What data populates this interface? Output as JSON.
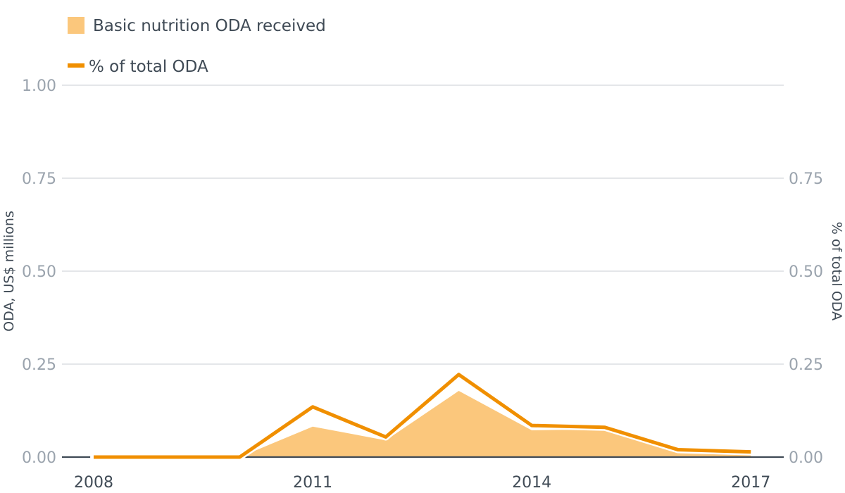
{
  "chart_data": {
    "type": "line",
    "categories": [
      "2008",
      "2009",
      "2010",
      "2011",
      "2012",
      "2013",
      "2014",
      "2015",
      "2016",
      "2017"
    ],
    "x_tick_labels": [
      "2008",
      "2011",
      "2014",
      "2017"
    ],
    "series": [
      {
        "name": "Basic nutrition ODA received",
        "type": "area",
        "axis": "left",
        "color": "#fbc77c",
        "values": [
          0.0,
          0.0,
          0.0,
          0.082,
          0.045,
          0.178,
          0.072,
          0.075,
          0.013,
          0.008
        ]
      },
      {
        "name": "% of total ODA",
        "type": "line",
        "axis": "right",
        "color": "#f08f00",
        "values": [
          0.0,
          0.0,
          0.0,
          0.135,
          0.054,
          0.222,
          0.085,
          0.08,
          0.02,
          0.014
        ]
      }
    ],
    "y_left": {
      "label": "ODA, US$ millions",
      "range": [
        0,
        1
      ],
      "ticks": [
        "0.00",
        "0.25",
        "0.50",
        "0.75",
        "1.00"
      ]
    },
    "y_right": {
      "label": "% of total ODA",
      "range": [
        0,
        1
      ],
      "ticks": [
        "0.00",
        "0.25",
        "0.50",
        "0.75"
      ]
    },
    "grid": true,
    "legend_placement": "top-left",
    "colors": {
      "grid": "#d3d7dc",
      "axis": "#3f4a55",
      "tick_text": "#9aa3ad",
      "label_text": "#3f4a55"
    }
  }
}
